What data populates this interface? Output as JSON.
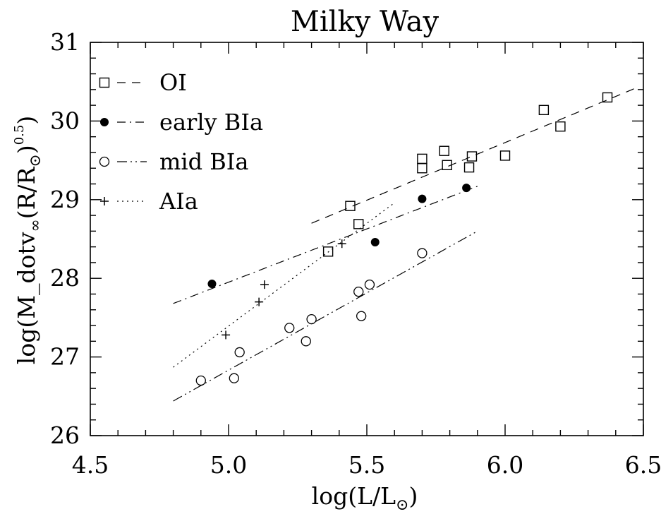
{
  "chart_data": {
    "type": "scatter",
    "title": "Milky Way",
    "xlabel": "log(L/L⊙)",
    "ylabel": "log(M_dotv∞(R/R⊙)0.5)",
    "ylabel_parts": {
      "base": "log(M_dotv",
      "sub": "∞",
      "mid": "(R/R",
      "sun": "⊙",
      "close": ")",
      "sup": "0.5",
      "end": ")"
    },
    "xlabel_parts": {
      "base": "log(L/L",
      "sun": "⊙",
      "end": ")"
    },
    "xlim": [
      4.5,
      6.5
    ],
    "ylim": [
      26,
      31
    ],
    "xticks": [
      "4.5",
      "5.0",
      "5.5",
      "6.0",
      "6.5"
    ],
    "yticks": [
      "26",
      "27",
      "28",
      "29",
      "30",
      "31"
    ],
    "grid": false,
    "legend_position": "top-left",
    "series": [
      {
        "name": "OI",
        "marker": "open-square",
        "line": "dashed",
        "fit": [
          [
            5.3,
            28.7
          ],
          [
            6.48,
            30.43
          ]
        ],
        "points": [
          [
            5.36,
            28.34
          ],
          [
            5.44,
            28.92
          ],
          [
            5.47,
            28.69
          ],
          [
            5.7,
            29.52
          ],
          [
            5.7,
            29.4
          ],
          [
            5.78,
            29.62
          ],
          [
            5.79,
            29.44
          ],
          [
            5.87,
            29.41
          ],
          [
            5.88,
            29.55
          ],
          [
            6.0,
            29.56
          ],
          [
            6.14,
            30.14
          ],
          [
            6.2,
            29.93
          ],
          [
            6.37,
            30.3
          ]
        ]
      },
      {
        "name": "early BIa",
        "marker": "filled-circle",
        "line": "dash-dot",
        "fit": [
          [
            4.8,
            27.68
          ],
          [
            5.9,
            29.17
          ]
        ],
        "points": [
          [
            4.94,
            27.93
          ],
          [
            5.53,
            28.46
          ],
          [
            5.7,
            29.01
          ],
          [
            5.86,
            29.15
          ]
        ]
      },
      {
        "name": "mid BIa",
        "marker": "open-circle",
        "line": "dash-dot-dot",
        "fit": [
          [
            4.8,
            26.44
          ],
          [
            5.9,
            28.6
          ]
        ],
        "points": [
          [
            4.9,
            26.7
          ],
          [
            5.02,
            26.73
          ],
          [
            5.04,
            27.06
          ],
          [
            5.22,
            27.37
          ],
          [
            5.28,
            27.2
          ],
          [
            5.3,
            27.48
          ],
          [
            5.47,
            27.83
          ],
          [
            5.48,
            27.52
          ],
          [
            5.51,
            27.92
          ],
          [
            5.7,
            28.32
          ]
        ]
      },
      {
        "name": "AIa",
        "marker": "plus",
        "line": "dotted",
        "fit": [
          [
            4.8,
            26.87
          ],
          [
            5.6,
            28.96
          ]
        ],
        "points": [
          [
            4.99,
            27.28
          ],
          [
            5.11,
            27.7
          ],
          [
            5.13,
            27.92
          ],
          [
            5.41,
            28.44
          ]
        ]
      }
    ]
  }
}
